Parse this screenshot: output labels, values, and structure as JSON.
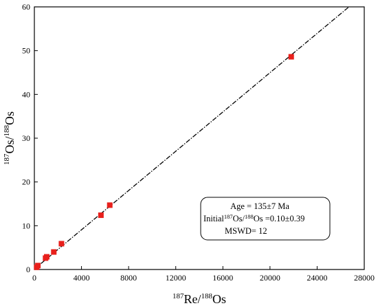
{
  "chart_data": {
    "type": "scatter",
    "x_label_main": "Re/",
    "x_label_sup1": "187",
    "x_label_sup2": "188",
    "x_label_end": "Os",
    "y_label_main": "Os/",
    "y_label_sup1": "187",
    "y_label_sup2": "188",
    "y_label_end": "Os",
    "xlim": [
      0,
      28000
    ],
    "ylim": [
      0,
      60
    ],
    "x_ticks": [
      0,
      4000,
      8000,
      12000,
      16000,
      20000,
      24000,
      28000
    ],
    "y_ticks": [
      0,
      10,
      20,
      30,
      40,
      50,
      60
    ],
    "x_tick_labels": [
      "0",
      "4000",
      "8000",
      "12000",
      "16000",
      "20000",
      "24000",
      "28000"
    ],
    "y_tick_labels": [
      "0",
      "10",
      "20",
      "30",
      "40",
      "50",
      "60"
    ],
    "grid": false,
    "marker_color": "#e8201c",
    "series": [
      {
        "points": [
          {
            "x": 200,
            "y": 0.5
          },
          {
            "x": 300,
            "y": 0.9
          },
          {
            "x": 950,
            "y": 2.6
          },
          {
            "x": 1050,
            "y": 2.9
          },
          {
            "x": 1650,
            "y": 4.0
          },
          {
            "x": 2300,
            "y": 5.9
          },
          {
            "x": 5650,
            "y": 12.4
          },
          {
            "x": 6400,
            "y": 14.7
          },
          {
            "x": 21800,
            "y": 48.6
          }
        ]
      }
    ],
    "fit_line": {
      "x0": 0,
      "y0": 0.1,
      "x1": 26700,
      "y1": 60,
      "style": "dash-dot"
    },
    "annotation": {
      "line1": "Age = 135±7 Ma",
      "line2_prefix": "Initial",
      "line2_sup1": "187",
      "line2_mid": "Os/",
      "line2_sup2": "188",
      "line2_suffix": "Os =0.10±0.39",
      "line3": "MSWD= 12"
    }
  }
}
